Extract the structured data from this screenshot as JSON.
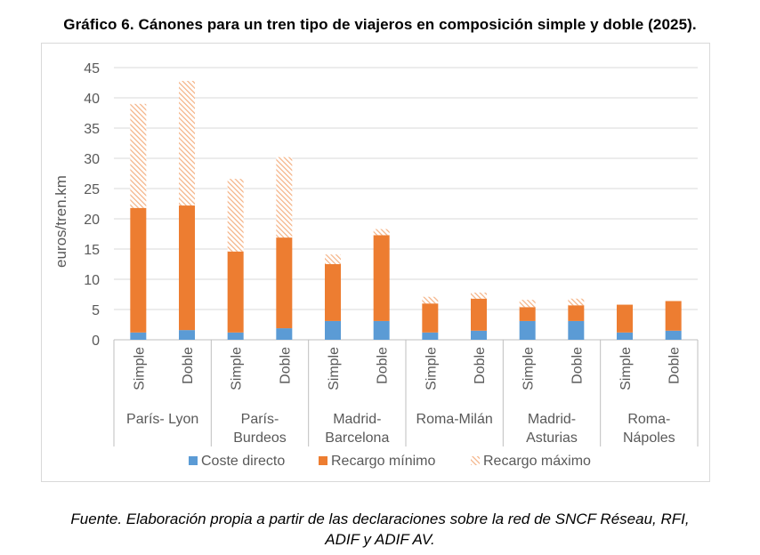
{
  "title": "Gráfico 6. Cánones para un tren tipo de viajeros en composición simple y doble (2025).",
  "source_lines": [
    "Fuente. Elaboración propia a partir de las declaraciones sobre la red de SNCF Réseau, RFI,",
    "ADIF y ADIF AV."
  ],
  "chart_data": {
    "type": "bar",
    "stacked": true,
    "title": "",
    "xlabel": "",
    "ylabel": "euros/tren.km",
    "ylim": [
      0,
      45
    ],
    "yticks": [
      0,
      5,
      10,
      15,
      20,
      25,
      30,
      35,
      40,
      45
    ],
    "grid": true,
    "legend_position": "bottom",
    "groups": [
      {
        "label": [
          "París- Lyon"
        ],
        "categories": [
          "Simple",
          "Doble"
        ]
      },
      {
        "label": [
          "París-",
          "Burdeos"
        ],
        "categories": [
          "Simple",
          "Doble"
        ]
      },
      {
        "label": [
          "Madrid-",
          "Barcelona"
        ],
        "categories": [
          "Simple",
          "Doble"
        ]
      },
      {
        "label": [
          "Roma-Milán"
        ],
        "categories": [
          "Simple",
          "Doble"
        ]
      },
      {
        "label": [
          "Madrid-",
          "Asturias"
        ],
        "categories": [
          "Simple",
          "Doble"
        ]
      },
      {
        "label": [
          "Roma-",
          "Nápoles"
        ],
        "categories": [
          "Simple",
          "Doble"
        ]
      }
    ],
    "series": [
      {
        "name": "Coste directo",
        "color": "#5b9bd5",
        "pattern": "solid",
        "values": [
          1.2,
          1.6,
          1.2,
          1.9,
          3.1,
          3.1,
          1.2,
          1.5,
          3.1,
          3.1,
          1.2,
          1.5
        ]
      },
      {
        "name": "Recargo mínimo",
        "color": "#ed7d31",
        "pattern": "solid",
        "values": [
          20.6,
          20.6,
          13.4,
          15.0,
          9.4,
          14.2,
          4.8,
          5.3,
          2.3,
          2.6,
          4.6,
          4.9
        ]
      },
      {
        "name": "Recargo máximo",
        "color": "#f4b183",
        "pattern": "hatched",
        "values": [
          17.2,
          20.6,
          12.0,
          13.3,
          1.6,
          1.0,
          1.1,
          1.0,
          1.2,
          1.1,
          0,
          0
        ]
      }
    ]
  }
}
